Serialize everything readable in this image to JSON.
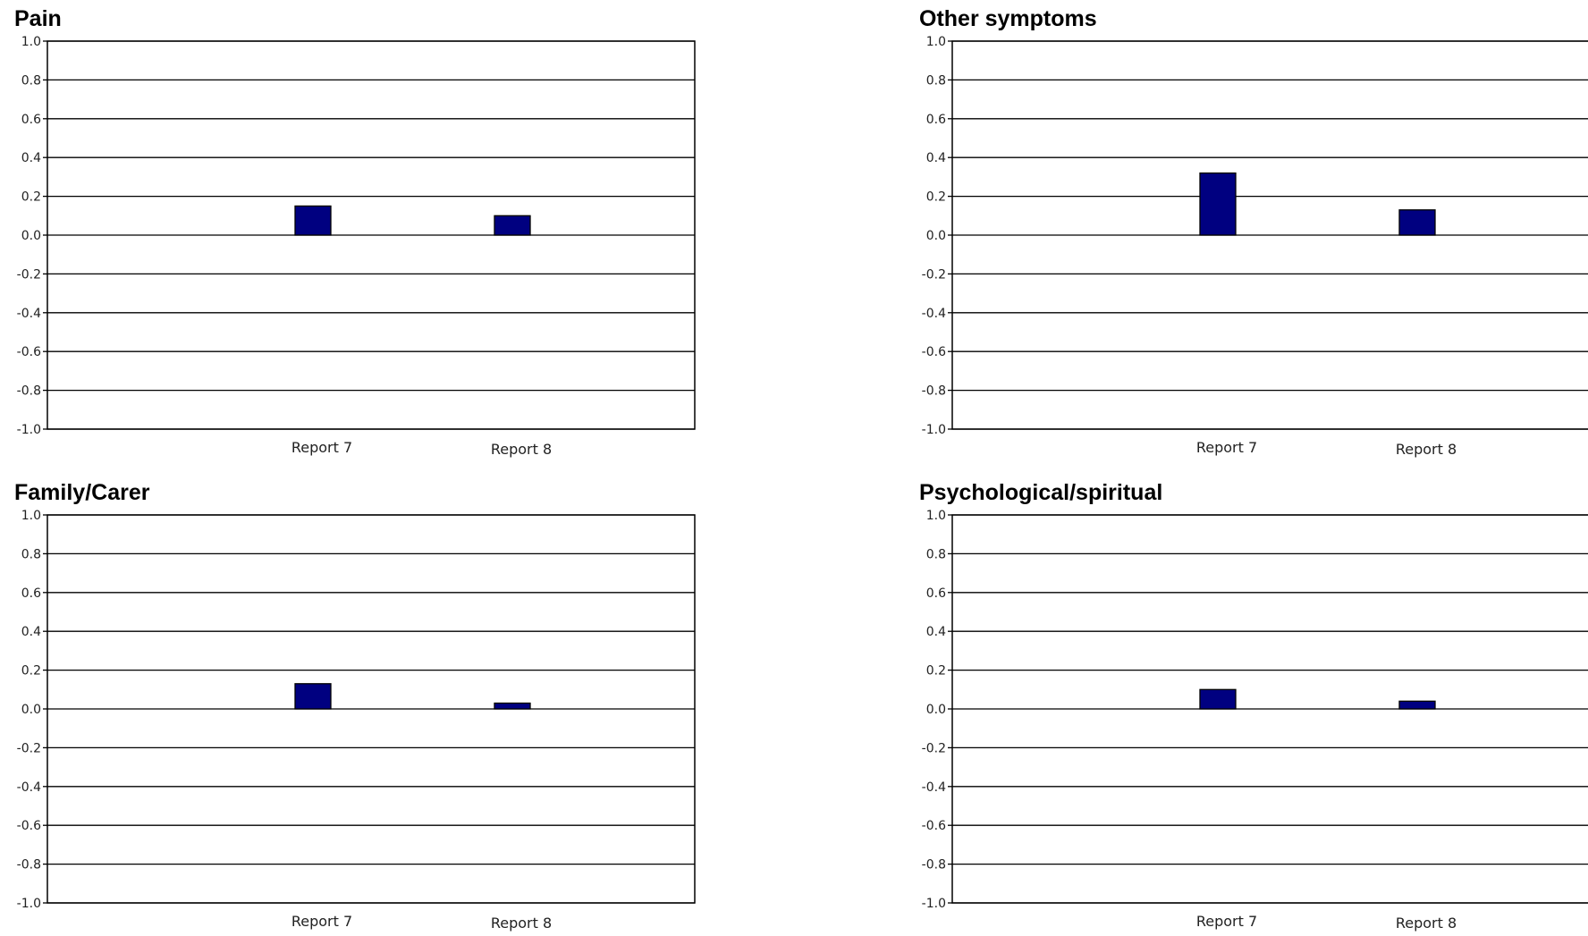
{
  "chart_data": [
    {
      "type": "bar",
      "title": "Pain",
      "categories": [
        "Report 7",
        "Report 8"
      ],
      "values": [
        0.15,
        0.1
      ],
      "ylim": [
        -1.0,
        1.0
      ],
      "yticks": [
        "1.0",
        "0.8",
        "0.6",
        "0.4",
        "0.2",
        "0.0",
        "-0.2",
        "-0.4",
        "-0.6",
        "-0.8",
        "-1.0"
      ],
      "grid": true,
      "bar_color": "#000080"
    },
    {
      "type": "bar",
      "title": "Other symptoms",
      "categories": [
        "Report 7",
        "Report 8"
      ],
      "values": [
        0.32,
        0.13
      ],
      "ylim": [
        -1.0,
        1.0
      ],
      "yticks": [
        "1.0",
        "0.8",
        "0.6",
        "0.4",
        "0.2",
        "0.0",
        "-0.2",
        "-0.4",
        "-0.6",
        "-0.8",
        "-1.0"
      ],
      "grid": true,
      "bar_color": "#000080"
    },
    {
      "type": "bar",
      "title": "Family/Carer",
      "categories": [
        "Report 7",
        "Report 8"
      ],
      "values": [
        0.13,
        0.03
      ],
      "ylim": [
        -1.0,
        1.0
      ],
      "yticks": [
        "1.0",
        "0.8",
        "0.6",
        "0.4",
        "0.2",
        "0.0",
        "-0.2",
        "-0.4",
        "-0.6",
        "-0.8",
        "-1.0"
      ],
      "grid": true,
      "bar_color": "#000080"
    },
    {
      "type": "bar",
      "title": "Psychological/spiritual",
      "categories": [
        "Report 7",
        "Report 8"
      ],
      "values": [
        0.1,
        0.04
      ],
      "ylim": [
        -1.0,
        1.0
      ],
      "yticks": [
        "1.0",
        "0.8",
        "0.6",
        "0.4",
        "0.2",
        "0.0",
        "-0.2",
        "-0.4",
        "-0.6",
        "-0.8",
        "-1.0"
      ],
      "grid": true,
      "bar_color": "#000080"
    }
  ]
}
